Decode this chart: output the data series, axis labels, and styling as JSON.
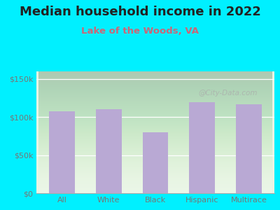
{
  "title": "Median household income in 2022",
  "subtitle": "Lake of the Woods, VA",
  "categories": [
    "All",
    "White",
    "Black",
    "Hispanic",
    "Multirace"
  ],
  "values": [
    108000,
    110000,
    80000,
    120000,
    117000
  ],
  "bar_color": "#b9a9d4",
  "background_color": "#00f0ff",
  "plot_bg": "#e8f5e4",
  "ylabel_ticks": [
    0,
    50000,
    100000,
    150000
  ],
  "ylabel_labels": [
    "$0",
    "$50k",
    "$100k",
    "$150k"
  ],
  "ylim": [
    0,
    160000
  ],
  "title_fontsize": 13,
  "subtitle_fontsize": 9.5,
  "tick_fontsize": 8,
  "title_color": "#222222",
  "subtitle_color": "#cc6677",
  "tick_color": "#777777",
  "watermark": "@City-Data.com"
}
